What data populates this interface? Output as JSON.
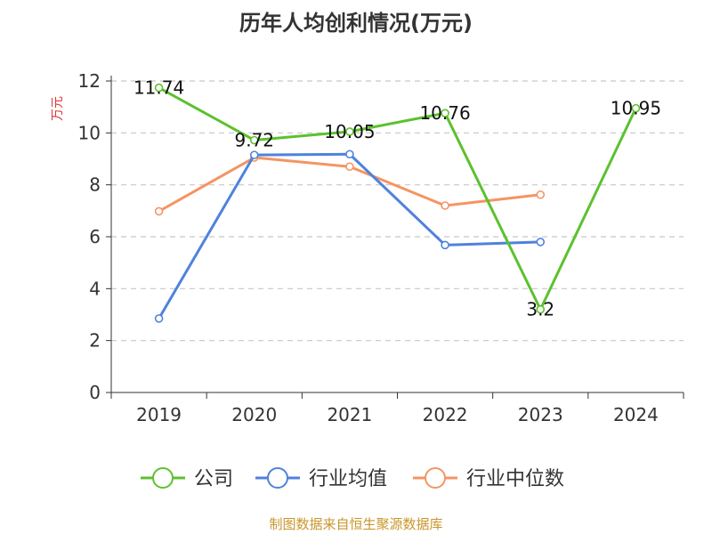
{
  "chart_data": {
    "type": "line",
    "title": "历年人均创利情况(万元)",
    "ylabel": "万元",
    "xlabel": "",
    "categories": [
      "2019",
      "2020",
      "2021",
      "2022",
      "2023",
      "2024"
    ],
    "ylim": [
      0,
      12
    ],
    "yticks": [
      0,
      2,
      4,
      6,
      8,
      10,
      12
    ],
    "grid": "horizontal-dashed",
    "legend_position": "bottom",
    "series": [
      {
        "name": "公司",
        "color": "#5cc12e",
        "values": [
          11.74,
          9.72,
          10.05,
          10.76,
          3.2,
          10.95
        ],
        "labels": [
          "11.74",
          "9.72",
          "10.05",
          "10.76",
          "3.2",
          "10.95"
        ]
      },
      {
        "name": "行业均值",
        "color": "#4f82dc",
        "values": [
          2.85,
          9.15,
          9.18,
          5.68,
          5.8,
          null
        ]
      },
      {
        "name": "行业中位数",
        "color": "#f59462",
        "values": [
          6.98,
          9.05,
          8.7,
          7.2,
          7.62,
          null
        ]
      }
    ],
    "source": "制图数据来自恒生聚源数据库"
  }
}
